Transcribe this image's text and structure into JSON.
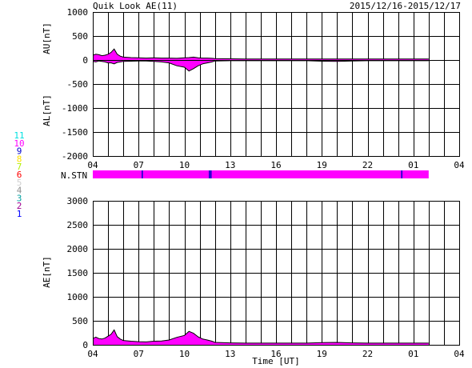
{
  "header": {
    "title": "Quik Look AE(11)",
    "date_range": "2015/12/16-2015/12/17"
  },
  "colors": {
    "magenta": "#ff00ff",
    "trace": "#000000",
    "station_marker": "#0000cc"
  },
  "station_legend": [
    {
      "n": "11",
      "color": "#00e0e0"
    },
    {
      "n": "10",
      "color": "#ff00ff"
    },
    {
      "n": "9",
      "color": "#0000cc"
    },
    {
      "n": "8",
      "color": "#ffe000"
    },
    {
      "n": "7",
      "color": "#b0f000"
    },
    {
      "n": "6",
      "color": "#ff0000"
    },
    {
      "n": "5",
      "color": "#d0d0d0"
    },
    {
      "n": "4",
      "color": "#909090"
    },
    {
      "n": "3",
      "color": "#00a0a0"
    },
    {
      "n": "2",
      "color": "#a00090"
    },
    {
      "n": "1",
      "color": "#0000ff"
    }
  ],
  "chart_data": [
    {
      "type": "area",
      "ylabel_upper": "AU[nT]",
      "ylabel_lower": "AL[nT]",
      "ylim": [
        -2000,
        1000
      ],
      "yticks": [
        1000,
        500,
        0,
        -500,
        -1000,
        -1500,
        -2000
      ],
      "xticks": [
        "04",
        "07",
        "10",
        "13",
        "16",
        "19",
        "22",
        "01",
        "04"
      ],
      "xlim_hours": [
        4,
        28
      ],
      "grid": true,
      "series": [
        {
          "x": [
            4.0,
            4.2,
            4.4,
            4.6,
            4.8,
            5.0,
            5.2,
            5.4,
            5.6,
            5.8,
            6.0,
            6.5,
            7.0,
            7.5,
            8.0,
            8.5,
            9.0,
            9.5,
            10.0,
            10.3,
            10.6,
            10.9,
            11.2,
            11.5,
            11.8,
            12.0,
            13,
            14,
            15,
            16,
            17,
            18,
            19,
            20,
            21,
            22,
            23,
            24,
            25,
            26
          ],
          "au": [
            100,
            120,
            110,
            90,
            100,
            120,
            160,
            230,
            120,
            80,
            60,
            50,
            45,
            40,
            45,
            40,
            40,
            35,
            45,
            50,
            60,
            45,
            40,
            40,
            35,
            30,
            25,
            20,
            20,
            20,
            20,
            20,
            20,
            20,
            20,
            20,
            20,
            20,
            20,
            20
          ],
          "al": [
            -30,
            -40,
            -20,
            -30,
            -40,
            -60,
            -60,
            -80,
            -50,
            -40,
            -30,
            -25,
            -20,
            -20,
            -30,
            -40,
            -60,
            -120,
            -150,
            -230,
            -180,
            -120,
            -80,
            -60,
            -40,
            -20,
            -15,
            -15,
            -15,
            -15,
            -15,
            -15,
            -25,
            -30,
            -20,
            -15,
            -15,
            -15,
            -15,
            -15
          ]
        }
      ]
    },
    {
      "type": "bar",
      "label": "N.STN",
      "stations": 10,
      "x_range_hours": [
        4,
        26
      ],
      "markers_hours": [
        7.2,
        11.6,
        11.7,
        24.2
      ]
    },
    {
      "type": "area",
      "ylabel": "AE[nT]",
      "xlabel": "Time [UT]",
      "ylim": [
        0,
        3000
      ],
      "yticks": [
        3000,
        2500,
        2000,
        1500,
        1000,
        500,
        0
      ],
      "xticks": [
        "04",
        "07",
        "10",
        "13",
        "16",
        "19",
        "22",
        "01",
        "04"
      ],
      "xlim_hours": [
        4,
        28
      ],
      "grid": true,
      "series": [
        {
          "x": [
            4.0,
            4.2,
            4.4,
            4.6,
            4.8,
            5.0,
            5.2,
            5.4,
            5.6,
            5.8,
            6.0,
            6.5,
            7.0,
            7.5,
            8.0,
            8.5,
            9.0,
            9.5,
            10.0,
            10.3,
            10.6,
            10.9,
            11.2,
            11.5,
            11.8,
            12.0,
            13,
            14,
            15,
            16,
            17,
            18,
            19,
            20,
            21,
            22,
            23,
            24,
            25,
            26
          ],
          "values": [
            130,
            160,
            130,
            120,
            140,
            180,
            220,
            310,
            170,
            120,
            90,
            75,
            65,
            60,
            75,
            80,
            100,
            155,
            195,
            280,
            240,
            165,
            120,
            100,
            75,
            50,
            40,
            35,
            35,
            35,
            35,
            35,
            45,
            50,
            40,
            35,
            35,
            35,
            35,
            35
          ]
        }
      ]
    }
  ]
}
